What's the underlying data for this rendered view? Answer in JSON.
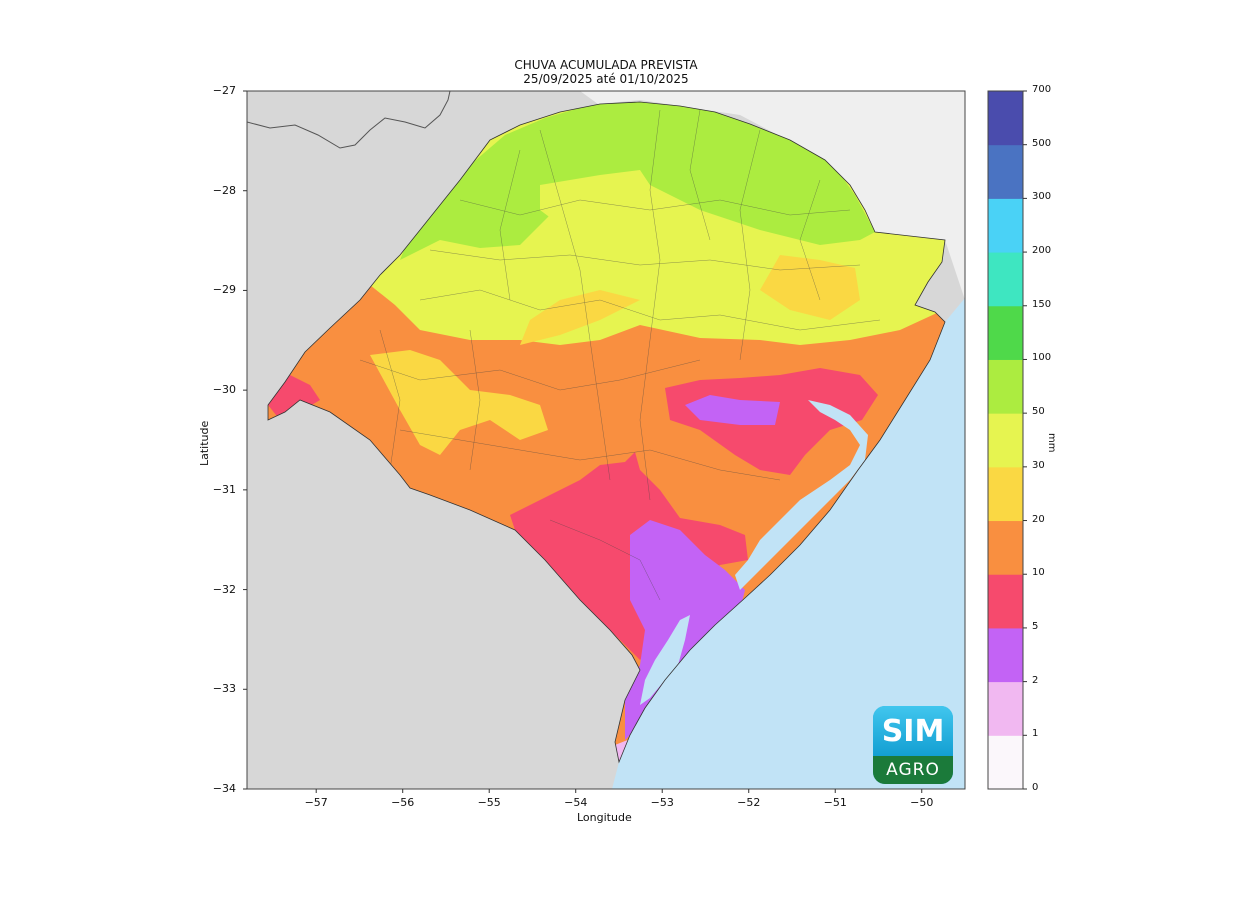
{
  "title": {
    "line1": "CHUVA ACUMULADA PREVISTA",
    "line2": "25/09/2025 até 01/10/2025"
  },
  "axes": {
    "xlabel": "Longitude",
    "ylabel": "Latitude",
    "xlim": [
      -57.8,
      -49.5
    ],
    "ylim": [
      -34,
      -27
    ],
    "xticks": [
      -57,
      -56,
      -55,
      -54,
      -53,
      -52,
      -51,
      -50
    ],
    "yticks": [
      -27,
      -28,
      -29,
      -30,
      -31,
      -32,
      -33,
      -34
    ],
    "xtick_labels": [
      "−57",
      "−56",
      "−55",
      "−54",
      "−53",
      "−52",
      "−51",
      "−50"
    ],
    "ytick_labels": [
      "−27",
      "−28",
      "−29",
      "−30",
      "−31",
      "−32",
      "−33",
      "−34"
    ]
  },
  "colorbar": {
    "unit": "mm",
    "levels": [
      "0",
      "1",
      "2",
      "5",
      "10",
      "20",
      "30",
      "50",
      "100",
      "150",
      "200",
      "300",
      "500",
      "700"
    ],
    "colors": [
      "#fbf7fb",
      "#f1b8f1",
      "#c363f5",
      "#f64a6d",
      "#f98f40",
      "#fad843",
      "#e6f450",
      "#acec40",
      "#4fd94a",
      "#3ee6c1",
      "#4ad2f6",
      "#4a73c2",
      "#4a4cad"
    ]
  },
  "map_colors": {
    "ocean": "#c1e3f6",
    "land_outside": "#d7d7d7",
    "land_outside_north": "#efefef",
    "border": "#333333"
  },
  "logo": {
    "top": "SIM",
    "bottom": "AGRO"
  }
}
